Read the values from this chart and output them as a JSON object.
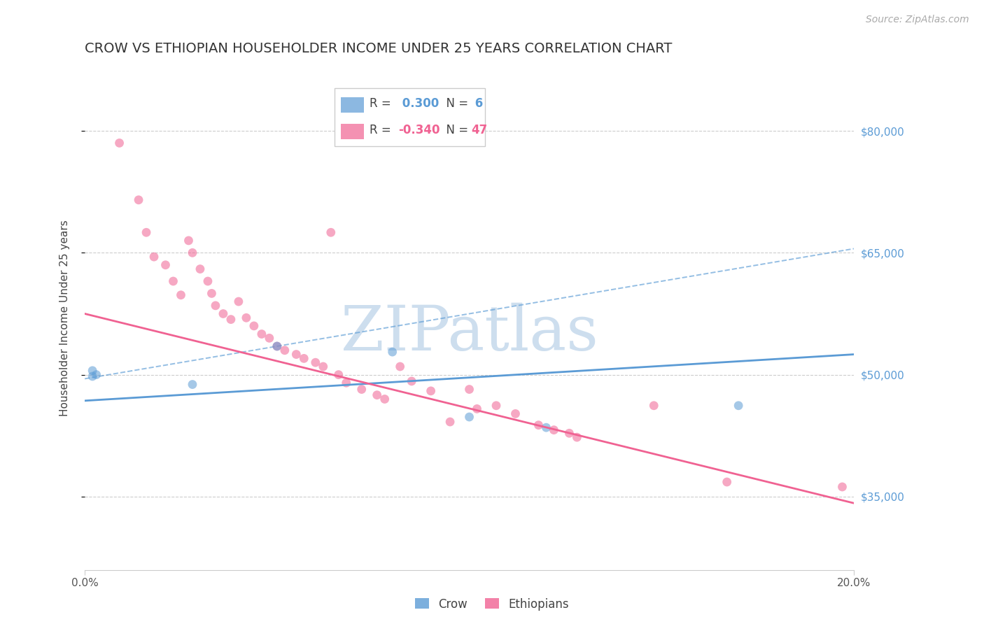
{
  "title": "CROW VS ETHIOPIAN HOUSEHOLDER INCOME UNDER 25 YEARS CORRELATION CHART",
  "source": "Source: ZipAtlas.com",
  "ylabel_label": "Householder Income Under 25 years",
  "x_min": 0.0,
  "x_max": 0.2,
  "y_min": 26000,
  "y_max": 88000,
  "yticks": [
    35000,
    50000,
    65000,
    80000
  ],
  "ytick_labels": [
    "$35,000",
    "$50,000",
    "$65,000",
    "$80,000"
  ],
  "crow_color": "#5b9bd5",
  "ethiopian_color": "#f06292",
  "crow_scatter": [
    [
      0.002,
      50500
    ],
    [
      0.002,
      49800
    ],
    [
      0.003,
      50000
    ],
    [
      0.028,
      48800
    ],
    [
      0.05,
      53500
    ],
    [
      0.08,
      52800
    ],
    [
      0.1,
      44800
    ],
    [
      0.12,
      43500
    ],
    [
      0.17,
      46200
    ]
  ],
  "ethiopian_scatter": [
    [
      0.009,
      78500
    ],
    [
      0.014,
      71500
    ],
    [
      0.016,
      67500
    ],
    [
      0.018,
      64500
    ],
    [
      0.021,
      63500
    ],
    [
      0.023,
      61500
    ],
    [
      0.025,
      59800
    ],
    [
      0.027,
      66500
    ],
    [
      0.028,
      65000
    ],
    [
      0.03,
      63000
    ],
    [
      0.032,
      61500
    ],
    [
      0.033,
      60000
    ],
    [
      0.034,
      58500
    ],
    [
      0.036,
      57500
    ],
    [
      0.038,
      56800
    ],
    [
      0.04,
      59000
    ],
    [
      0.042,
      57000
    ],
    [
      0.044,
      56000
    ],
    [
      0.046,
      55000
    ],
    [
      0.048,
      54500
    ],
    [
      0.05,
      53500
    ],
    [
      0.052,
      53000
    ],
    [
      0.055,
      52500
    ],
    [
      0.057,
      52000
    ],
    [
      0.06,
      51500
    ],
    [
      0.062,
      51000
    ],
    [
      0.064,
      67500
    ],
    [
      0.066,
      50000
    ],
    [
      0.068,
      49000
    ],
    [
      0.072,
      48200
    ],
    [
      0.076,
      47500
    ],
    [
      0.078,
      47000
    ],
    [
      0.082,
      51000
    ],
    [
      0.085,
      49200
    ],
    [
      0.09,
      48000
    ],
    [
      0.095,
      44200
    ],
    [
      0.1,
      48200
    ],
    [
      0.102,
      45800
    ],
    [
      0.107,
      46200
    ],
    [
      0.112,
      45200
    ],
    [
      0.118,
      43800
    ],
    [
      0.122,
      43200
    ],
    [
      0.126,
      42800
    ],
    [
      0.128,
      42300
    ],
    [
      0.148,
      46200
    ],
    [
      0.167,
      36800
    ],
    [
      0.197,
      36200
    ]
  ],
  "crow_line": [
    0.0,
    46800,
    0.2,
    52500
  ],
  "ethiopian_line": [
    0.0,
    57500,
    0.2,
    34200
  ],
  "crow_dashed_line": [
    0.0,
    49500,
    0.2,
    65500
  ],
  "watermark_text": "ZIPatlas",
  "watermark_color": "#b8d0e8",
  "background_color": "#ffffff",
  "grid_color": "#cccccc",
  "title_fontsize": 14,
  "source_fontsize": 10,
  "axis_label_fontsize": 11,
  "tick_fontsize": 11,
  "scatter_size": 85,
  "scatter_alpha": 0.55,
  "line_width": 2.0
}
